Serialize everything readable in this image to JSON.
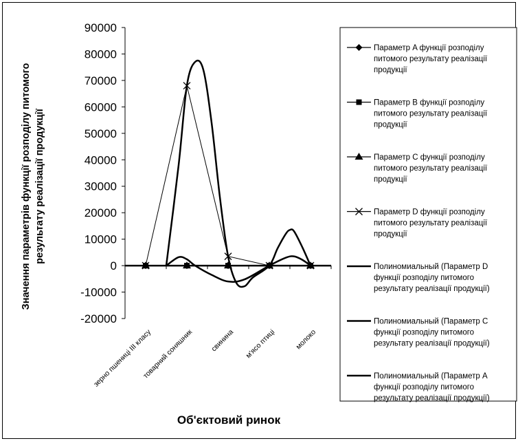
{
  "chart_data": {
    "type": "line",
    "title": "",
    "xlabel": "Об'єктовий ринок",
    "ylabel": [
      "Значення параметрів функції розподілу питомого",
      "результату реалізації продукції"
    ],
    "ylim": [
      -20000,
      90000
    ],
    "ytick_step": 10000,
    "grid": false,
    "legend_position": "right",
    "categories": [
      "зерно пшениці III класу",
      "товарний соняшник",
      "свинина",
      "м'ясо птиці",
      "молоко"
    ],
    "series": [
      {
        "name": [
          "Параметр A функції розподілу",
          "питомого результату реалізації",
          "продукції"
        ],
        "marker": "diamond",
        "values": [
          0,
          0,
          0,
          0,
          0
        ]
      },
      {
        "name": [
          "Параметр B функції розподілу",
          "питомого результату реалізації",
          "продукції"
        ],
        "marker": "square",
        "values": [
          0,
          0,
          0,
          0,
          0
        ]
      },
      {
        "name": [
          "Параметр C функції розподілу",
          "питомого результату реалізації",
          "продукції"
        ],
        "marker": "triangle",
        "values": [
          0,
          0,
          0,
          0,
          0
        ]
      },
      {
        "name": [
          "Параметр D функції розподілу",
          "питомого результату реалізації",
          "продукції"
        ],
        "marker": "x",
        "values": [
          0,
          68000,
          3500,
          0,
          0
        ]
      }
    ],
    "trendlines": [
      {
        "name": [
          "Полиномиальный (Параметр D",
          "функції розподілу питомого",
          "результату реалізації продукції)"
        ],
        "of_series": "Параметр D",
        "polynomial_order": 4
      },
      {
        "name": [
          "Полиномиальный (Параметр C",
          "функції розподілу питомого",
          "результату реалізації продукції)"
        ],
        "of_series": "Параметр C",
        "polynomial_order": 4
      },
      {
        "name": [
          "Полиномиальный (Параметр A",
          "функції розподілу питомого",
          "результату реалізації продукції)"
        ],
        "of_series": "Параметр A",
        "polynomial_order": 4
      }
    ],
    "trend_shape": {
      "d_curve": [
        [
          0.5,
          0
        ],
        [
          0.8,
          38000
        ],
        [
          1.0,
          68000
        ],
        [
          1.2,
          77000
        ],
        [
          1.4,
          74000
        ],
        [
          1.6,
          54000
        ],
        [
          1.8,
          26000
        ],
        [
          2.0,
          3500
        ],
        [
          2.2,
          -6500
        ],
        [
          2.4,
          -7800
        ],
        [
          2.6,
          -4500
        ],
        [
          3.0,
          0
        ],
        [
          3.2,
          6500
        ],
        [
          3.4,
          12000
        ],
        [
          3.5,
          13500
        ],
        [
          3.6,
          13000
        ],
        [
          3.8,
          7000
        ],
        [
          4.0,
          0
        ]
      ],
      "small_curve": [
        [
          0.5,
          0
        ],
        [
          0.8,
          3200
        ],
        [
          1.0,
          2400
        ],
        [
          1.2,
          0
        ],
        [
          1.6,
          -3500
        ],
        [
          2.0,
          -6000
        ],
        [
          2.4,
          -5200
        ],
        [
          3.0,
          0
        ],
        [
          3.4,
          3000
        ],
        [
          3.6,
          3500
        ],
        [
          3.8,
          2200
        ],
        [
          4.0,
          0
        ]
      ]
    }
  }
}
